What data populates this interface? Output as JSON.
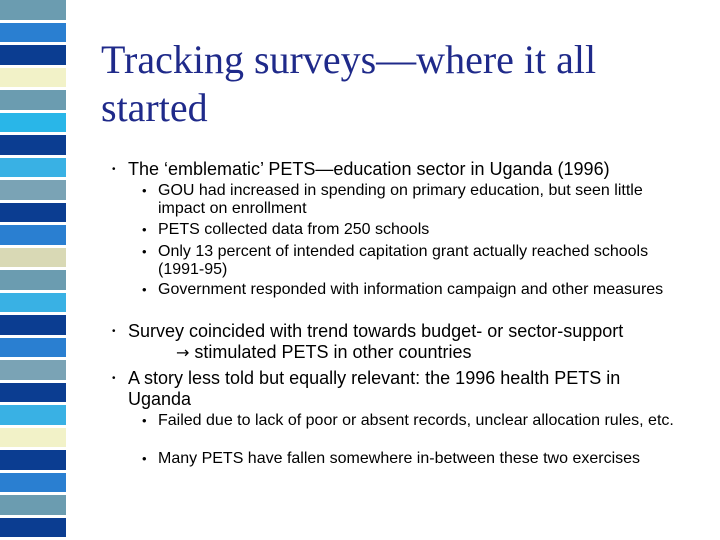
{
  "slide": {
    "title": "Tracking surveys—where it all started",
    "stripe_colors": [
      "#6b9cb0",
      "#2a7fd1",
      "#0b3d91",
      "#f2f2c8",
      "#6b9cb0",
      "#29b6e8",
      "#0b3d91",
      "#39b1e4",
      "#7aa3b5",
      "#0b3d91",
      "#2a7fd1",
      "#d9d9b5",
      "#6b9cb0",
      "#39b1e4",
      "#0b3d91",
      "#2a7fd1",
      "#7aa3b5",
      "#0b3d91",
      "#39b1e4",
      "#f2f2c8",
      "#0b3d91",
      "#2a7fd1",
      "#6b9cb0",
      "#0b3d91"
    ],
    "bullet_char": "•",
    "items": [
      {
        "level": 1,
        "text": "The ‘emblematic’ PETS—education sector in Uganda (1996)"
      },
      {
        "level": 2,
        "text": "GOU had increased in spending on primary education, but seen little impact on enrollment"
      },
      {
        "level": 2,
        "text": "PETS collected data from 250 schools"
      },
      {
        "level": 2,
        "text": "Only 13 percent of intended capitation grant actually reached schools (1991-95)"
      },
      {
        "level": 2,
        "text": "Government responded with information campaign and other measures"
      },
      {
        "level": 1,
        "text": "Survey coincided with trend towards budget- or sector-support",
        "continuation_arrow": "→",
        "continuation": "stimulated PETS in other countries"
      },
      {
        "level": 1,
        "text": "A story less told but equally relevant: the 1996 health PETS in Uganda"
      },
      {
        "level": 2,
        "text": "Failed due to lack of poor or absent records, unclear allocation rules, etc."
      },
      {
        "level": 2,
        "text": "Many PETS have fallen somewhere in-between these two exercises"
      }
    ]
  }
}
